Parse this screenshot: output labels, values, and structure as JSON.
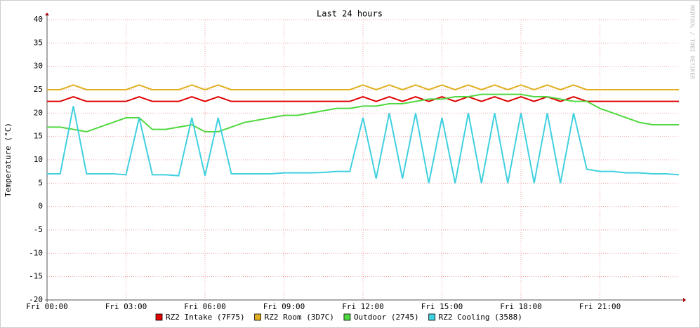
{
  "chart_data": {
    "type": "line",
    "title": "Last 24 hours",
    "y_label": "Temperature (°C)",
    "credit": "RRDTOOL / TOBI OETIKER",
    "x": [
      0,
      0.5,
      1,
      1.5,
      2,
      2.5,
      3,
      3.5,
      4,
      4.5,
      5,
      5.5,
      6,
      6.5,
      7,
      7.5,
      8,
      8.5,
      9,
      9.5,
      10,
      10.5,
      11,
      11.5,
      12,
      12.5,
      13,
      13.5,
      14,
      14.5,
      15,
      15.5,
      16,
      16.5,
      17,
      17.5,
      18,
      18.5,
      19,
      19.5,
      20,
      20.5,
      21,
      21.5,
      22,
      22.5,
      23,
      23.5,
      24
    ],
    "xlim": [
      0,
      24
    ],
    "xticks": [
      {
        "value": 0,
        "label": "Fri 00:00"
      },
      {
        "value": 3,
        "label": "Fri 03:00"
      },
      {
        "value": 6,
        "label": "Fri 06:00"
      },
      {
        "value": 9,
        "label": "Fri 09:00"
      },
      {
        "value": 12,
        "label": "Fri 12:00"
      },
      {
        "value": 15,
        "label": "Fri 15:00"
      },
      {
        "value": 18,
        "label": "Fri 18:00"
      },
      {
        "value": 21,
        "label": "Fri 21:00"
      }
    ],
    "ylim": [
      -20,
      40
    ],
    "yticks": [
      -20,
      -15,
      -10,
      -5,
      0,
      5,
      10,
      15,
      20,
      25,
      30,
      35,
      40
    ],
    "grid": true,
    "series": [
      {
        "name": "RZ2 Intake (7F75)",
        "color": "#e00000",
        "values": [
          22.5,
          22.5,
          23.5,
          22.5,
          22.5,
          22.5,
          22.5,
          23.5,
          22.5,
          22.5,
          22.5,
          23.5,
          22.5,
          23.5,
          22.5,
          22.5,
          22.5,
          22.5,
          22.5,
          22.5,
          22.5,
          22.5,
          22.5,
          22.5,
          23.5,
          22.5,
          23.5,
          22.5,
          23.5,
          22.5,
          23.5,
          22.5,
          23.5,
          22.5,
          23.5,
          22.5,
          23.5,
          22.5,
          23.5,
          22.5,
          23.5,
          22.5,
          22.5,
          22.5,
          22.5,
          22.5,
          22.5,
          22.5,
          22.5
        ]
      },
      {
        "name": "RZ2 Room (3D7C)",
        "color": "#e0b020",
        "values": [
          25,
          25,
          26,
          25,
          25,
          25,
          25,
          26,
          25,
          25,
          25,
          26,
          25,
          26,
          25,
          25,
          25,
          25,
          25,
          25,
          25,
          25,
          25,
          25,
          26,
          25,
          26,
          25,
          26,
          25,
          26,
          25,
          26,
          25,
          26,
          25,
          26,
          25,
          26,
          25,
          26,
          25,
          25,
          25,
          25,
          25,
          25,
          25,
          25
        ]
      },
      {
        "name": "Outdoor (2745)",
        "color": "#50d840",
        "values": [
          17,
          17,
          16.5,
          16,
          17,
          18,
          19,
          19,
          16.5,
          16.5,
          17,
          17.5,
          16,
          16,
          17,
          18,
          18.5,
          19,
          19.5,
          19.5,
          20,
          20.5,
          21,
          21,
          21.5,
          21.5,
          22,
          22,
          22.5,
          23,
          23,
          23.5,
          23.5,
          24,
          24,
          24,
          24,
          23.5,
          23.5,
          23,
          22.5,
          22.5,
          21,
          20,
          19,
          18,
          17.5,
          17.5,
          17.5
        ]
      },
      {
        "name": "RZ2 Cooling (3588)",
        "color": "#40d0e0",
        "values": [
          7,
          7,
          21.5,
          7,
          7,
          7,
          6.8,
          19,
          6.8,
          6.8,
          6.6,
          19,
          6.6,
          19,
          7,
          7,
          7,
          7,
          7.2,
          7.2,
          7.2,
          7.3,
          7.5,
          7.5,
          19,
          6,
          20,
          6,
          20,
          5,
          19,
          5,
          20,
          5,
          20,
          5,
          20,
          5,
          20,
          5,
          20,
          8,
          7.5,
          7.5,
          7.2,
          7.2,
          7,
          7,
          6.8
        ]
      }
    ]
  }
}
